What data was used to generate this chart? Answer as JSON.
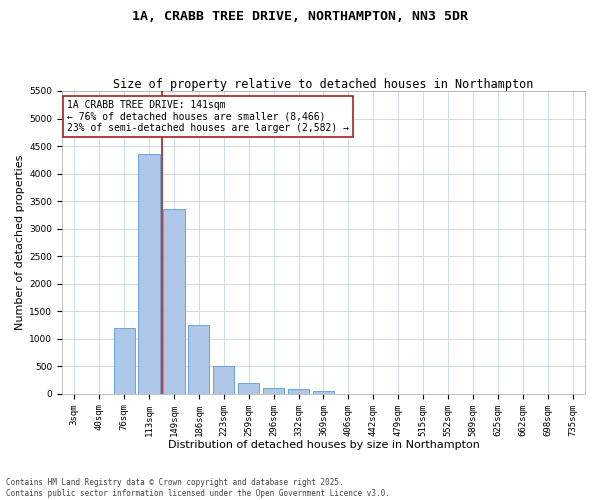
{
  "title_line1": "1A, CRABB TREE DRIVE, NORTHAMPTON, NN3 5DR",
  "title_line2": "Size of property relative to detached houses in Northampton",
  "xlabel": "Distribution of detached houses by size in Northampton",
  "ylabel": "Number of detached properties",
  "categories": [
    "3sqm",
    "40sqm",
    "76sqm",
    "113sqm",
    "149sqm",
    "186sqm",
    "223sqm",
    "259sqm",
    "296sqm",
    "332sqm",
    "369sqm",
    "406sqm",
    "442sqm",
    "479sqm",
    "515sqm",
    "552sqm",
    "589sqm",
    "625sqm",
    "662sqm",
    "698sqm",
    "735sqm"
  ],
  "values": [
    0,
    0,
    1200,
    4350,
    3350,
    1250,
    500,
    200,
    100,
    80,
    60,
    0,
    0,
    0,
    0,
    0,
    0,
    0,
    0,
    0,
    0
  ],
  "bar_color": "#aec6e8",
  "bar_edge_color": "#5b9bd5",
  "vline_color": "#a52020",
  "ylim": [
    0,
    5500
  ],
  "yticks": [
    0,
    500,
    1000,
    1500,
    2000,
    2500,
    3000,
    3500,
    4000,
    4500,
    5000,
    5500
  ],
  "annotation_title": "1A CRABB TREE DRIVE: 141sqm",
  "annotation_line1": "← 76% of detached houses are smaller (8,466)",
  "annotation_line2": "23% of semi-detached houses are larger (2,582) →",
  "annotation_box_color": "#ffffff",
  "annotation_box_edge": "#a52020",
  "footnote1": "Contains HM Land Registry data © Crown copyright and database right 2025.",
  "footnote2": "Contains public sector information licensed under the Open Government Licence v3.0.",
  "bg_color": "#ffffff",
  "grid_color": "#c8d4e8",
  "title_fontsize": 9.5,
  "subtitle_fontsize": 8.5,
  "tick_fontsize": 6.5,
  "label_fontsize": 8,
  "annot_fontsize": 7,
  "footnote_fontsize": 5.5
}
